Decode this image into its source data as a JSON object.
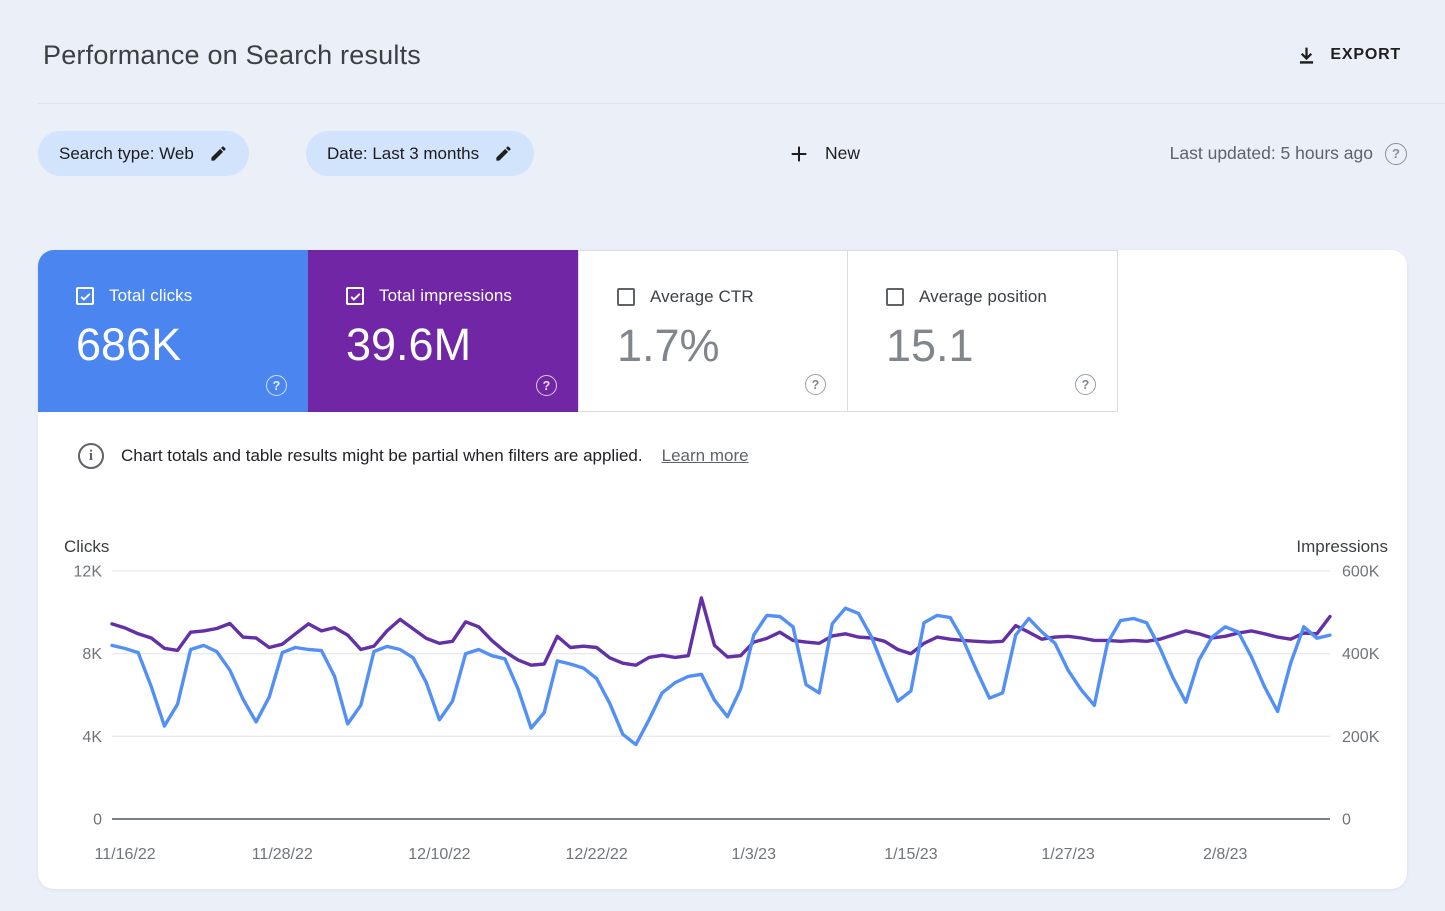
{
  "header": {
    "title": "Performance on Search results",
    "export_label": "EXPORT"
  },
  "filters": {
    "search_type": "Search type: Web",
    "date": "Date: Last 3 months",
    "new_label": "New",
    "last_updated": "Last updated: 5 hours ago"
  },
  "metrics": [
    {
      "id": "clicks",
      "label": "Total clicks",
      "value": "686K",
      "checked": true,
      "color": "#4b85f0"
    },
    {
      "id": "impressions",
      "label": "Total impressions",
      "value": "39.6M",
      "checked": true,
      "color": "#7127a5"
    },
    {
      "id": "ctr",
      "label": "Average CTR",
      "value": "1.7%",
      "checked": false,
      "color": "#ffffff"
    },
    {
      "id": "position",
      "label": "Average position",
      "value": "15.1",
      "checked": false,
      "color": "#ffffff"
    }
  ],
  "notice": {
    "text": "Chart totals and table results might be partial when filters are applied.",
    "link_label": "Learn more"
  },
  "chart_data": {
    "type": "line",
    "x": [
      "11/15/22",
      "11/16/22",
      "11/17/22",
      "11/18/22",
      "11/19/22",
      "11/20/22",
      "11/21/22",
      "11/22/22",
      "11/23/22",
      "11/24/22",
      "11/25/22",
      "11/26/22",
      "11/27/22",
      "11/28/22",
      "11/29/22",
      "11/30/22",
      "12/1/22",
      "12/2/22",
      "12/3/22",
      "12/4/22",
      "12/5/22",
      "12/6/22",
      "12/7/22",
      "12/8/22",
      "12/9/22",
      "12/10/22",
      "12/11/22",
      "12/12/22",
      "12/13/22",
      "12/14/22",
      "12/15/22",
      "12/16/22",
      "12/17/22",
      "12/18/22",
      "12/19/22",
      "12/20/22",
      "12/21/22",
      "12/22/22",
      "12/23/22",
      "12/24/22",
      "12/25/22",
      "12/26/22",
      "12/27/22",
      "12/28/22",
      "12/29/22",
      "12/30/22",
      "12/31/22",
      "1/1/23",
      "1/2/23",
      "1/3/23",
      "1/4/23",
      "1/5/23",
      "1/6/23",
      "1/7/23",
      "1/8/23",
      "1/9/23",
      "1/10/23",
      "1/11/23",
      "1/12/23",
      "1/13/23",
      "1/14/23",
      "1/15/23",
      "1/16/23",
      "1/17/23",
      "1/18/23",
      "1/19/23",
      "1/20/23",
      "1/21/23",
      "1/22/23",
      "1/23/23",
      "1/24/23",
      "1/25/23",
      "1/26/23",
      "1/27/23",
      "1/28/23",
      "1/29/23",
      "1/30/23",
      "1/31/23",
      "2/1/23",
      "2/2/23",
      "2/3/23",
      "2/4/23",
      "2/5/23",
      "2/6/23",
      "2/7/23",
      "2/8/23",
      "2/9/23",
      "2/10/23",
      "2/11/23",
      "2/12/23",
      "2/13/23",
      "2/14/23",
      "2/15/23",
      "2/16/23"
    ],
    "series": [
      {
        "name": "Clicks",
        "axis": "left",
        "color": "#5290f5",
        "values": [
          8400,
          8250,
          8050,
          6400,
          4500,
          5550,
          8200,
          8400,
          8100,
          7200,
          5800,
          4700,
          5900,
          8050,
          8300,
          8200,
          8150,
          6900,
          4600,
          5500,
          8100,
          8350,
          8200,
          7800,
          6600,
          4800,
          5700,
          8000,
          8200,
          7900,
          7750,
          6300,
          4400,
          5150,
          7650,
          7500,
          7300,
          6800,
          5600,
          4100,
          3600,
          4800,
          6100,
          6600,
          6900,
          7000,
          5750,
          4950,
          6300,
          8900,
          9850,
          9800,
          9300,
          6500,
          6100,
          9450,
          10200,
          9950,
          8800,
          7200,
          5700,
          6200,
          9500,
          9850,
          9750,
          8650,
          7200,
          5850,
          6100,
          8900,
          9700,
          9050,
          8500,
          7200,
          6250,
          5500,
          8500,
          9600,
          9700,
          9500,
          8300,
          6850,
          5650,
          7700,
          8800,
          9300,
          9050,
          7850,
          6400,
          5200,
          7550,
          9300,
          8750,
          8900
        ]
      },
      {
        "name": "Impressions",
        "axis": "right",
        "color": "#6430a6",
        "values": [
          472000,
          462000,
          448000,
          438000,
          413000,
          408000,
          452000,
          455000,
          461000,
          473000,
          440000,
          438000,
          415000,
          423000,
          448000,
          472000,
          455000,
          463000,
          445000,
          410000,
          418000,
          455000,
          483000,
          460000,
          437000,
          425000,
          430000,
          477000,
          465000,
          432000,
          405000,
          385000,
          372000,
          375000,
          442000,
          415000,
          418000,
          415000,
          390000,
          377000,
          372000,
          391000,
          396000,
          391000,
          395000,
          535000,
          420000,
          392000,
          395000,
          428000,
          437000,
          452000,
          432000,
          428000,
          425000,
          443000,
          448000,
          440000,
          438000,
          430000,
          410000,
          400000,
          425000,
          440000,
          435000,
          432000,
          430000,
          428000,
          430000,
          468000,
          452000,
          435000,
          440000,
          442000,
          438000,
          432000,
          432000,
          430000,
          432000,
          430000,
          435000,
          445000,
          455000,
          448000,
          438000,
          442000,
          450000,
          455000,
          448000,
          440000,
          435000,
          450000,
          448000,
          490000
        ]
      }
    ],
    "left_axis": {
      "label": "Clicks",
      "ticks": [
        "0",
        "4K",
        "8K",
        "12K"
      ],
      "range": [
        0,
        12000
      ]
    },
    "right_axis": {
      "label": "Impressions",
      "ticks": [
        "0",
        "200K",
        "400K",
        "600K"
      ],
      "range": [
        0,
        600000
      ]
    },
    "x_tick_labels": [
      "11/16/22",
      "11/28/22",
      "12/10/22",
      "12/22/22",
      "1/3/23",
      "1/15/23",
      "1/27/23",
      "2/8/23"
    ],
    "x_tick_indices": [
      1,
      13,
      25,
      37,
      49,
      61,
      73,
      85
    ],
    "grid": true,
    "legend_position": "none"
  },
  "colors": {
    "page_background": "#ebeff8",
    "card_background": "#ffffff",
    "chip_background": "#d2e3fc",
    "clicks_tile": "#4b85f0",
    "impressions_tile": "#7127a5",
    "clicks_line": "#5290f5",
    "impressions_line": "#6430a6",
    "gridline": "#e8eaed",
    "axis_line": "#7b8087",
    "tick_text": "#70757a"
  }
}
